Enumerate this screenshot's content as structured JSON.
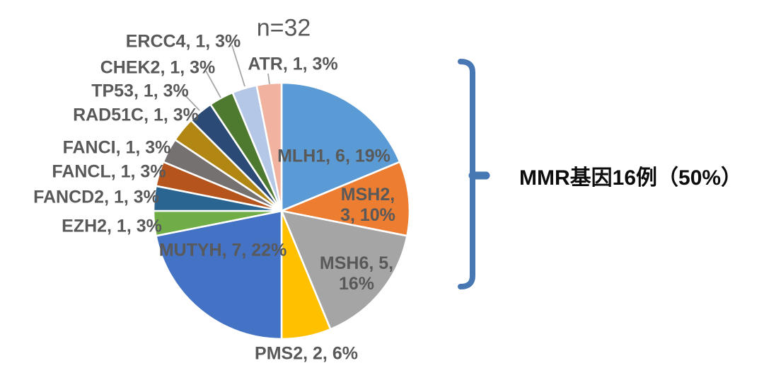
{
  "page": {
    "background": "#ffffff"
  },
  "chart_data": {
    "type": "pie",
    "title": "n=32",
    "total": 32,
    "start_angle": "top",
    "direction": "clockwise",
    "legend": "none",
    "slices": [
      {
        "name": "MLH1",
        "value": 6,
        "percent": "19%",
        "label": "MLH1, 6, 19%",
        "color": "#5B9BD5",
        "label_placement": "inside"
      },
      {
        "name": "MSH2",
        "value": 3,
        "percent": "10%",
        "label": "MSH2,\n3, 10%",
        "color": "#ED7D31",
        "label_placement": "inside"
      },
      {
        "name": "MSH6",
        "value": 5,
        "percent": "16%",
        "label": "MSH6, 5,\n16%",
        "color": "#A5A5A5",
        "label_placement": "inside"
      },
      {
        "name": "PMS2",
        "value": 2,
        "percent": "6%",
        "label": "PMS2, 2, 6%",
        "color": "#FFC000",
        "label_placement": "outside"
      },
      {
        "name": "MUTYH",
        "value": 7,
        "percent": "22%",
        "label": "MUTYH, 7, 22%",
        "color": "#4472C4",
        "label_placement": "inside"
      },
      {
        "name": "EZH2",
        "value": 1,
        "percent": "3%",
        "label": "EZH2, 1, 3%",
        "color": "#70AD47",
        "label_placement": "outside"
      },
      {
        "name": "FANCD2",
        "value": 1,
        "percent": "3%",
        "label": "FANCD2, 1, 3%",
        "color": "#2A6592",
        "label_placement": "outside"
      },
      {
        "name": "FANCL",
        "value": 1,
        "percent": "3%",
        "label": "FANCL, 1, 3%",
        "color": "#B5541C",
        "label_placement": "outside"
      },
      {
        "name": "FANCI",
        "value": 1,
        "percent": "3%",
        "label": "FANCI, 1, 3%",
        "color": "#767171",
        "label_placement": "outside"
      },
      {
        "name": "RAD51C",
        "value": 1,
        "percent": "3%",
        "label": "RAD51C, 1, 3%",
        "color": "#B28612",
        "label_placement": "outside"
      },
      {
        "name": "TP53",
        "value": 1,
        "percent": "3%",
        "label": "TP53, 1, 3%",
        "color": "#2C4A76",
        "label_placement": "outside"
      },
      {
        "name": "CHEK2",
        "value": 1,
        "percent": "3%",
        "label": "CHEK2, 1, 3%",
        "color": "#4E7A30",
        "label_placement": "outside"
      },
      {
        "name": "ERCC4",
        "value": 1,
        "percent": "3%",
        "label": "ERCC4, 1, 3%",
        "color": "#B4C7E7",
        "label_placement": "outside"
      },
      {
        "name": "ATR",
        "value": 1,
        "percent": "3%",
        "label": "ATR, 1, 3%",
        "color": "#F1B39F",
        "label_placement": "outside"
      }
    ],
    "annotation": {
      "label": "MMR基因16例（50%）",
      "bracket_color": "#4878B4"
    }
  }
}
